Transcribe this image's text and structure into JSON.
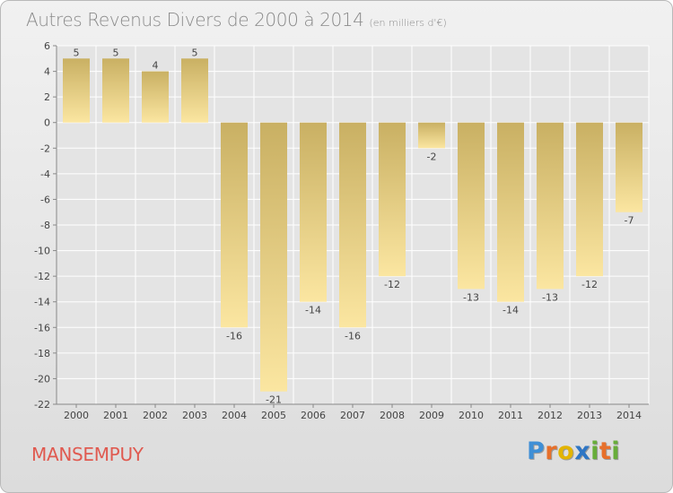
{
  "header": {
    "title": "Autres Revenus Divers de 2000 à 2014",
    "subtitle": "(en milliers d'€)"
  },
  "footer": {
    "commune": "MANSEMPUY",
    "logo_text": "Proxiti",
    "logo_letters": [
      {
        "ch": "P",
        "color": "#3f8fd6"
      },
      {
        "ch": "r",
        "color": "#e7702b"
      },
      {
        "ch": "o",
        "color": "#e3b400"
      },
      {
        "ch": "x",
        "color": "#2f76c4"
      },
      {
        "ch": "i",
        "color": "#68ad3a"
      },
      {
        "ch": "t",
        "color": "#e7702b"
      },
      {
        "ch": "i",
        "color": "#68ad3a"
      }
    ]
  },
  "colors": {
    "bar_dark": "#c9b063",
    "bar_light": "#fbe6a1",
    "axis": "#888888",
    "grid": "#ffffff",
    "text": "#444444",
    "commune": "#e05a50"
  },
  "chart_data": {
    "type": "bar",
    "title": "Autres Revenus Divers de 2000 à 2014",
    "subtitle": "(en milliers d'€)",
    "categories": [
      "2000",
      "2001",
      "2002",
      "2003",
      "2004",
      "2005",
      "2006",
      "2007",
      "2008",
      "2009",
      "2010",
      "2011",
      "2012",
      "2013",
      "2014"
    ],
    "values": [
      5,
      5,
      4,
      5,
      -16,
      -21,
      -14,
      -16,
      -12,
      -2,
      -13,
      -14,
      -13,
      -12,
      -7
    ],
    "ylim": [
      -22,
      6
    ],
    "yticks": [
      6,
      4,
      2,
      0,
      -2,
      -4,
      -6,
      -8,
      -10,
      -12,
      -14,
      -16,
      -18,
      -20,
      -22
    ],
    "grid": true,
    "data_labels": true
  }
}
